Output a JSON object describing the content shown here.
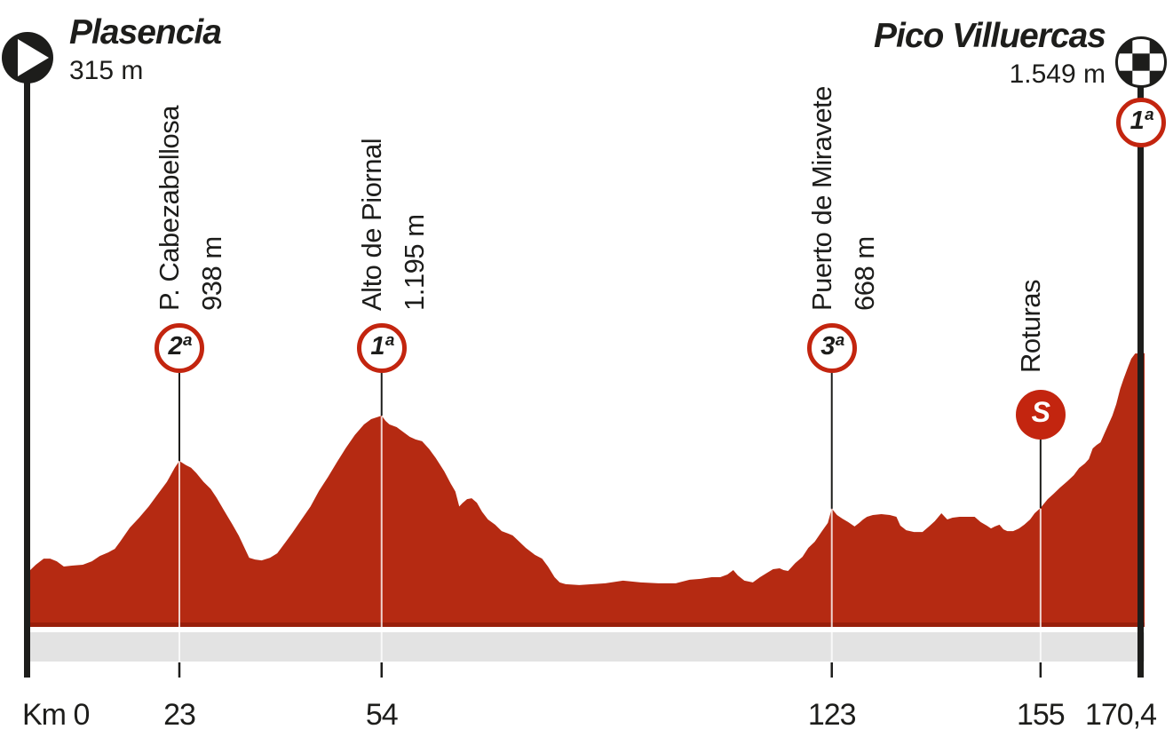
{
  "start": {
    "name": "Plasencia",
    "elevation": "315 m"
  },
  "finish": {
    "name": "Pico Villuercas",
    "elevation": "1.549 m",
    "category": "1ª"
  },
  "markers": [
    {
      "km": 23,
      "name": "P. Cabezabellosa",
      "elevation_label": "938 m",
      "category": "2ª",
      "type": "climb"
    },
    {
      "km": 54,
      "name": "Alto de Piornal",
      "elevation_label": "1.195 m",
      "category": "1ª",
      "type": "climb"
    },
    {
      "km": 123,
      "name": "Puerto de Miravete",
      "elevation_label": "668 m",
      "category": "3ª",
      "type": "climb"
    },
    {
      "km": 155,
      "name": "Roturas",
      "elevation_label": "",
      "category": "S",
      "type": "sprint"
    }
  ],
  "axis": {
    "origin_label": "Km 0",
    "ticks": [
      {
        "km": 23,
        "label": "23"
      },
      {
        "km": 54,
        "label": "54"
      },
      {
        "km": 123,
        "label": "123"
      },
      {
        "km": 155,
        "label": "155"
      },
      {
        "km": 170.4,
        "label": "170,4",
        "is_finish": true
      }
    ]
  },
  "icons": {
    "start": "play-circle-icon",
    "finish": "checkered-finish-icon",
    "sprint": "sprint-s-badge"
  },
  "colors": {
    "profile": "#b52a12",
    "profile_edge": "#991f0b",
    "badge_red": "#c3250f",
    "band_gray": "#e3e3e3",
    "text": "#1d1d1b",
    "marker_line_light": "#ffffff",
    "white": "#ffffff"
  },
  "chart_data": {
    "type": "area",
    "xlabel": "Km",
    "y_unit": "m",
    "x_range": [
      0,
      170.4
    ],
    "y_range": [
      0,
      1600
    ],
    "start_elevation": 315,
    "finish_elevation": 1549,
    "profile": [
      [
        0,
        315
      ],
      [
        1,
        350
      ],
      [
        2.2,
        385
      ],
      [
        3.2,
        385
      ],
      [
        4.2,
        370
      ],
      [
        5.3,
        340
      ],
      [
        6.5,
        345
      ],
      [
        8.2,
        350
      ],
      [
        9.6,
        370
      ],
      [
        10.8,
        400
      ],
      [
        12.1,
        420
      ],
      [
        13.1,
        440
      ],
      [
        13.9,
        480
      ],
      [
        15.4,
        560
      ],
      [
        16.8,
        615
      ],
      [
        18.3,
        680
      ],
      [
        19.7,
        750
      ],
      [
        21.1,
        820
      ],
      [
        22.3,
        900
      ],
      [
        23,
        938
      ],
      [
        24,
        915
      ],
      [
        24.8,
        900
      ],
      [
        25.6,
        870
      ],
      [
        26.7,
        820
      ],
      [
        27.8,
        780
      ],
      [
        28.7,
        730
      ],
      [
        29.8,
        660
      ],
      [
        31.1,
        580
      ],
      [
        32.1,
        515
      ],
      [
        33,
        445
      ],
      [
        33.7,
        390
      ],
      [
        34.6,
        380
      ],
      [
        35.6,
        375
      ],
      [
        36.9,
        390
      ],
      [
        38,
        415
      ],
      [
        39.3,
        480
      ],
      [
        40.3,
        530
      ],
      [
        41.7,
        605
      ],
      [
        43.1,
        680
      ],
      [
        44.4,
        768
      ],
      [
        45.8,
        848
      ],
      [
        47.2,
        934
      ],
      [
        48.5,
        1010
      ],
      [
        49.9,
        1085
      ],
      [
        51.3,
        1145
      ],
      [
        52.4,
        1175
      ],
      [
        54,
        1195
      ],
      [
        54.6,
        1165
      ],
      [
        55.2,
        1145
      ],
      [
        56.3,
        1130
      ],
      [
        57.2,
        1105
      ],
      [
        58.3,
        1075
      ],
      [
        59.2,
        1060
      ],
      [
        60.2,
        1050
      ],
      [
        61.3,
        1005
      ],
      [
        62.3,
        955
      ],
      [
        63.6,
        880
      ],
      [
        64.6,
        810
      ],
      [
        65.3,
        765
      ],
      [
        65.9,
        680
      ],
      [
        66.4,
        700
      ],
      [
        67.1,
        722
      ],
      [
        67.8,
        727
      ],
      [
        68.6,
        702
      ],
      [
        69.4,
        650
      ],
      [
        70.3,
        607
      ],
      [
        71.4,
        577
      ],
      [
        72.4,
        541
      ],
      [
        73.4,
        527
      ],
      [
        74.1,
        516
      ],
      [
        75.1,
        481
      ],
      [
        76.1,
        446
      ],
      [
        77.5,
        406
      ],
      [
        78.6,
        385
      ],
      [
        79.5,
        340
      ],
      [
        80.5,
        280
      ],
      [
        81.3,
        250
      ],
      [
        82.2,
        240
      ],
      [
        84.3,
        235
      ],
      [
        86.3,
        240
      ],
      [
        88.3,
        245
      ],
      [
        91,
        260
      ],
      [
        93.7,
        250
      ],
      [
        96.4,
        245
      ],
      [
        99.1,
        245
      ],
      [
        101.2,
        265
      ],
      [
        102.9,
        270
      ],
      [
        104.6,
        280
      ],
      [
        105.9,
        280
      ],
      [
        107,
        295
      ],
      [
        107.9,
        320
      ],
      [
        108.6,
        290
      ],
      [
        109.6,
        260
      ],
      [
        110.9,
        250
      ],
      [
        112,
        280
      ],
      [
        113.1,
        305
      ],
      [
        114,
        325
      ],
      [
        115,
        330
      ],
      [
        115.6,
        320
      ],
      [
        116.3,
        315
      ],
      [
        117.4,
        360
      ],
      [
        118.5,
        395
      ],
      [
        119.4,
        446
      ],
      [
        120.4,
        481
      ],
      [
        121.5,
        541
      ],
      [
        122.4,
        587
      ],
      [
        123,
        668
      ],
      [
        123.8,
        632
      ],
      [
        124.6,
        612
      ],
      [
        125.5,
        592
      ],
      [
        126.5,
        567
      ],
      [
        127.2,
        587
      ],
      [
        127.8,
        607
      ],
      [
        128.4,
        622
      ],
      [
        129.3,
        632
      ],
      [
        130.6,
        637
      ],
      [
        131.9,
        632
      ],
      [
        132.9,
        622
      ],
      [
        133.5,
        572
      ],
      [
        134.4,
        546
      ],
      [
        135.6,
        536
      ],
      [
        136.9,
        536
      ],
      [
        137.9,
        567
      ],
      [
        138.8,
        597
      ],
      [
        139.8,
        642
      ],
      [
        140.7,
        607
      ],
      [
        141.5,
        617
      ],
      [
        142.6,
        622
      ],
      [
        143.9,
        622
      ],
      [
        144.9,
        622
      ],
      [
        145.8,
        592
      ],
      [
        146.8,
        571
      ],
      [
        147.4,
        556
      ],
      [
        148,
        567
      ],
      [
        148.7,
        577
      ],
      [
        149.3,
        551
      ],
      [
        149.9,
        541
      ],
      [
        150.8,
        541
      ],
      [
        151.7,
        556
      ],
      [
        152.5,
        577
      ],
      [
        153.4,
        607
      ],
      [
        154.1,
        642
      ],
      [
        155,
        672
      ],
      [
        156.1,
        722
      ],
      [
        157,
        752
      ],
      [
        158,
        788
      ],
      [
        159.1,
        823
      ],
      [
        160.1,
        858
      ],
      [
        160.9,
        898
      ],
      [
        161.8,
        924
      ],
      [
        162.4,
        949
      ],
      [
        163,
        1009
      ],
      [
        163.6,
        1029
      ],
      [
        164.2,
        1044
      ],
      [
        164.8,
        1095
      ],
      [
        165.4,
        1145
      ],
      [
        166,
        1195
      ],
      [
        166.6,
        1260
      ],
      [
        167.2,
        1346
      ],
      [
        167.7,
        1401
      ],
      [
        168.3,
        1461
      ],
      [
        168.9,
        1517
      ],
      [
        169.5,
        1547
      ],
      [
        170.4,
        1549
      ]
    ]
  }
}
